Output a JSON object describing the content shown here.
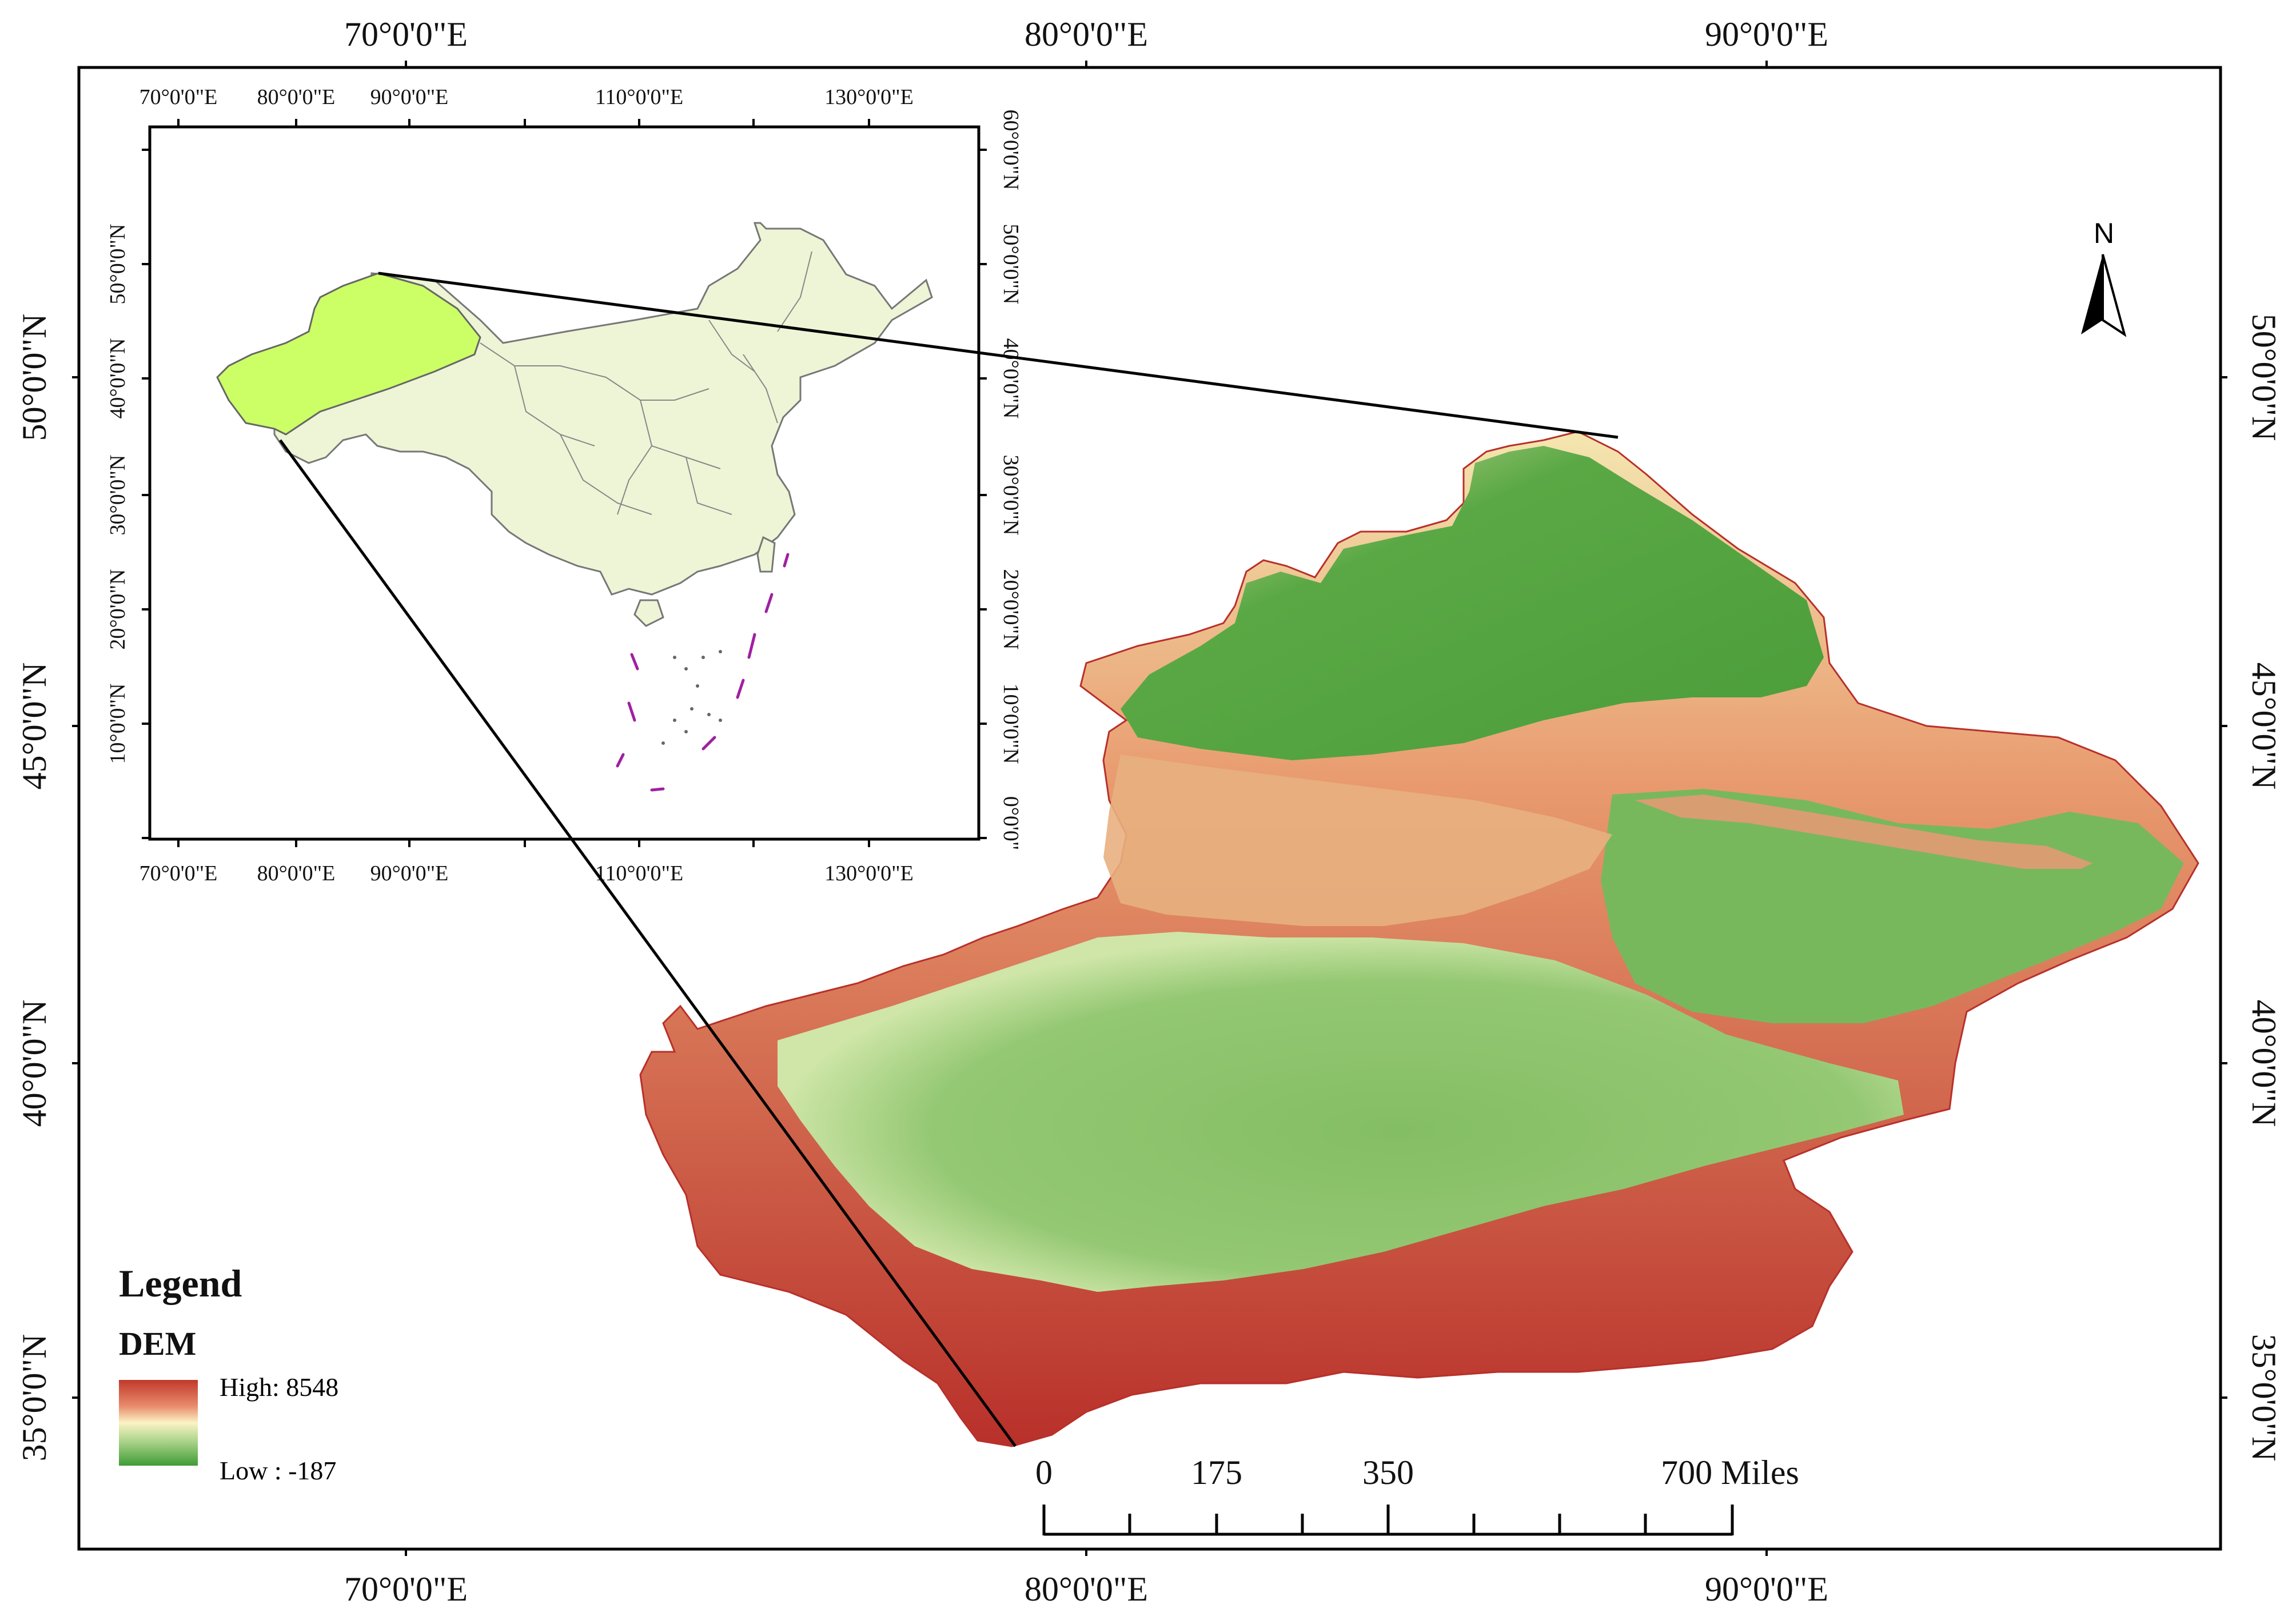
{
  "map": {
    "grid_top": [
      "70°0'0\"E",
      "80°0'0\"E",
      "90°0'0\"E"
    ],
    "grid_bottom": [
      "70°0'0\"E",
      "80°0'0\"E",
      "90°0'0\"E"
    ],
    "grid_left": [
      "50°0'0\"N",
      "45°0'0\"N",
      "40°0'0\"N",
      "35°0'0\"N"
    ],
    "grid_right": [
      "50°0'0\"N",
      "45°0'0\"N",
      "40°0'0\"N",
      "35°0'0\"N"
    ]
  },
  "inset": {
    "top_lon": [
      "70°0'0\"E",
      "80°0'0\"E",
      "90°0'0\"E",
      "110°0'0\"E",
      "130°0'0\"E"
    ],
    "bottom_lon": [
      "70°0'0\"E",
      "80°0'0\"E",
      "90°0'0\"E",
      "110°0'0\"E",
      "130°0'0\"E"
    ],
    "left_lat": [
      "50°0'0\"N",
      "40°0'0\"N",
      "30°0'0\"N",
      "20°0'0\"N",
      "10°0'0\"N"
    ],
    "right_lat": [
      "60°0'0\"N",
      "50°0'0\"N",
      "40°0'0\"N",
      "30°0'0\"N",
      "20°0'0\"N",
      "10°0'0\"N",
      "0°0'0\""
    ],
    "colors": {
      "highlight": "#ccff66",
      "land": "#eef5d6",
      "border": "#777777",
      "dashline": "#a020a0"
    }
  },
  "north_arrow": {
    "label": "N"
  },
  "legend": {
    "title": "Legend",
    "layer": "DEM",
    "high_label": "High: 8548",
    "low_label": "Low : -187",
    "ramp": [
      "#c0392b",
      "#e8896a",
      "#fbf3c4",
      "#a9d38a",
      "#3f9b35"
    ]
  },
  "scale_bar": {
    "labels": [
      "0",
      "175",
      "350",
      "700 Miles"
    ]
  },
  "dem_colors": {
    "high": "#c0362a",
    "midhigh": "#e89a6e",
    "mid": "#f5ecb8",
    "midlow": "#a8d48a",
    "low": "#4a9d3a",
    "basin": "#8cc46c"
  }
}
